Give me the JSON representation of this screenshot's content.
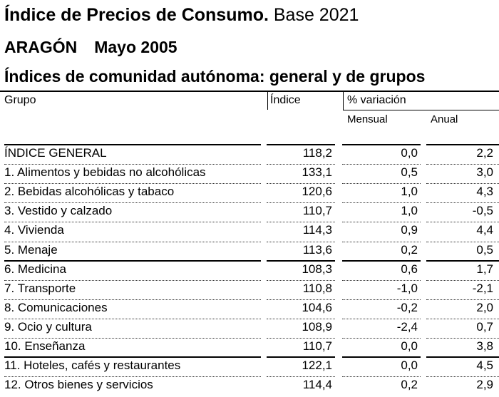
{
  "header": {
    "title_bold": "Índice de Precios de Consumo.",
    "title_rest": " Base 2021",
    "region": "ARAGÓN",
    "period": "Mayo 2005",
    "subtitle": "Índices de comunidad autónoma: general y de grupos"
  },
  "columns": {
    "grupo": "Grupo",
    "indice": "Índice",
    "variacion": "% variación",
    "mensual": "Mensual",
    "anual": "Anual"
  },
  "rows": [
    {
      "grupo": "ÍNDICE GENERAL",
      "indice": "118,2",
      "mensual": "0,0",
      "anual": "2,2"
    },
    {
      "grupo": "1. Alimentos y bebidas no alcohólicas",
      "indice": "133,1",
      "mensual": "0,5",
      "anual": "3,0"
    },
    {
      "grupo": "2. Bebidas alcohólicas y tabaco",
      "indice": "120,6",
      "mensual": "1,0",
      "anual": "4,3"
    },
    {
      "grupo": "3. Vestido y calzado",
      "indice": "110,7",
      "mensual": "1,0",
      "anual": "-0,5"
    },
    {
      "grupo": "4. Vivienda",
      "indice": "114,3",
      "mensual": "0,9",
      "anual": "4,4"
    },
    {
      "grupo": "5. Menaje",
      "indice": "113,6",
      "mensual": "0,2",
      "anual": "0,5"
    },
    {
      "grupo": "6. Medicina",
      "indice": "108,3",
      "mensual": "0,6",
      "anual": "1,7"
    },
    {
      "grupo": "7. Transporte",
      "indice": "110,8",
      "mensual": "-1,0",
      "anual": "-2,1"
    },
    {
      "grupo": "8. Comunicaciones",
      "indice": "104,6",
      "mensual": "-0,2",
      "anual": "2,0"
    },
    {
      "grupo": "9. Ocio y cultura",
      "indice": "108,9",
      "mensual": "-2,4",
      "anual": "0,7"
    },
    {
      "grupo": "10. Enseñanza",
      "indice": "110,7",
      "mensual": "0,0",
      "anual": "3,8"
    },
    {
      "grupo": "11. Hoteles, cafés y restaurantes",
      "indice": "122,1",
      "mensual": "0,0",
      "anual": "4,5"
    },
    {
      "grupo": "12. Otros bienes y servicios",
      "indice": "114,4",
      "mensual": "0,2",
      "anual": "2,9"
    }
  ]
}
